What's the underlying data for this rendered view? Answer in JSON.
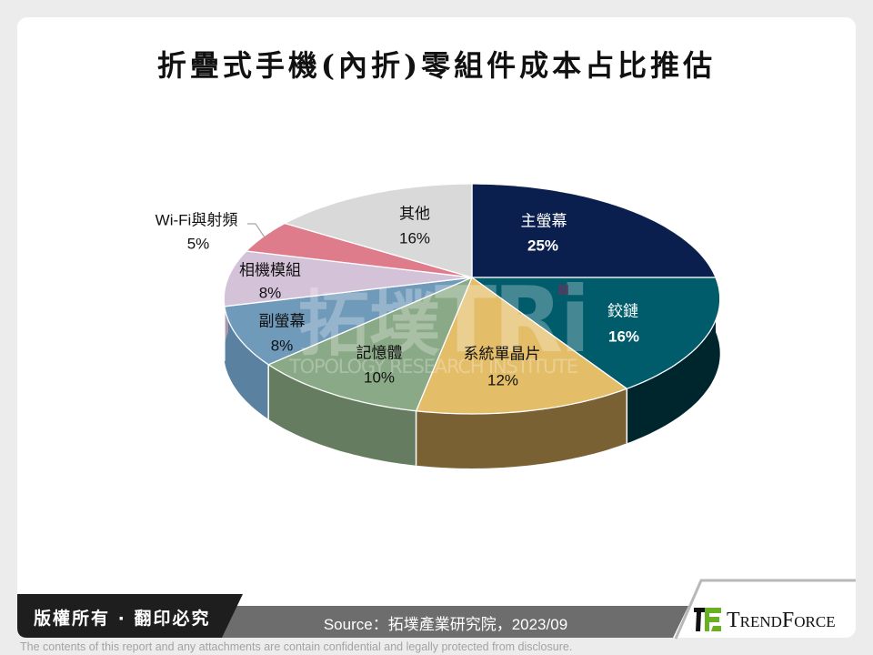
{
  "title": "折疊式手機(內折)零組件成本占比推估",
  "chart_data": {
    "type": "pie",
    "style": "3d-perspective",
    "title": "折疊式手機(內折)零組件成本占比推估",
    "categories": [
      "主螢幕",
      "鉸鏈",
      "系統單晶片",
      "記憶體",
      "副螢幕",
      "相機模組",
      "Wi-Fi與射頻",
      "其他"
    ],
    "values": [
      25,
      16,
      12,
      10,
      8,
      8,
      5,
      16
    ],
    "value_labels": [
      "25%",
      "16%",
      "12%",
      "10%",
      "8%",
      "8%",
      "5%",
      "16%"
    ],
    "unit": "%",
    "start_angle": 0,
    "direction": "clockwise",
    "colors": [
      "#0b1f4e",
      "#005b6b",
      "#e3bd68",
      "#8aa986",
      "#6f9aba",
      "#d4c2d9",
      "#df7c8b",
      "#d9d9d9"
    ],
    "side_colors": [
      "#061433",
      "#00262d",
      "#7a6134",
      "#657c60",
      "#5a82a0",
      "#a898ad",
      "#b0606d",
      "#aaaaaa"
    ],
    "label_colors": [
      "#ffffff",
      "#ffffff",
      "#111111",
      "#111111",
      "#111111",
      "#111111",
      "#111111",
      "#111111"
    ],
    "legend": "none",
    "xlabel": "",
    "ylabel": ""
  },
  "watermark": {
    "logo_cn": "拓墣",
    "logo_en": "TRi",
    "subtitle": "TOPOLOGY RESEARCH INSTITUTE"
  },
  "footer": {
    "copyright": "版權所有 · 翻印必究",
    "source": "Source：拓墣產業研究院，2023/09",
    "brand": "TrendForce",
    "disclaimer": "The contents of this report and any attachments are contain confidential and legally protected from disclosure."
  }
}
